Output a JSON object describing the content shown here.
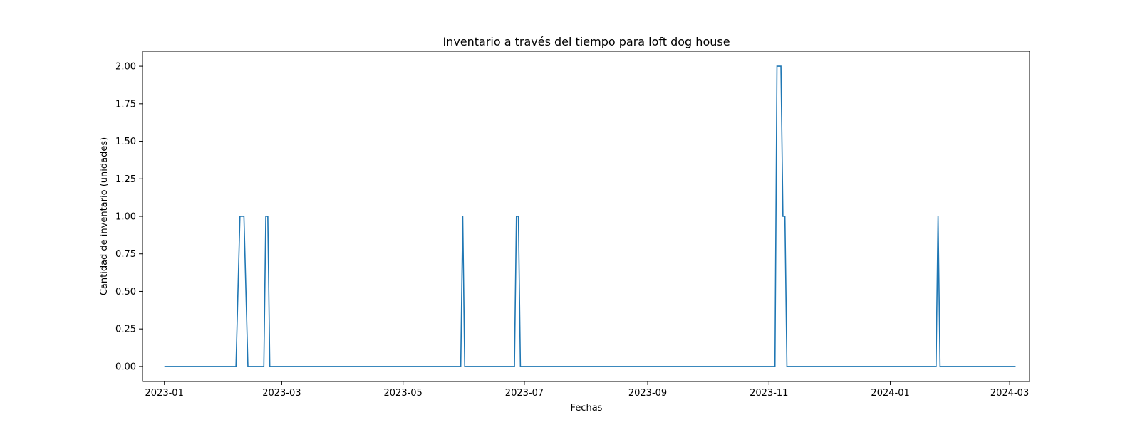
{
  "chart_data": {
    "type": "line",
    "title": "Inventario a través del tiempo para loft dog house",
    "xlabel": "Fechas",
    "ylabel": "Cantidad de inventario (unidades)",
    "x_ticks": [
      "2023-01",
      "2023-03",
      "2023-05",
      "2023-07",
      "2023-09",
      "2023-11",
      "2024-01",
      "2024-03"
    ],
    "y_ticks": [
      "0.00",
      "0.25",
      "0.50",
      "0.75",
      "1.00",
      "1.25",
      "1.50",
      "1.75",
      "2.00"
    ],
    "xlim": [
      "2022-12-21",
      "2024-03-11"
    ],
    "ylim": [
      -0.1,
      2.1
    ],
    "grid": false,
    "legend": "none",
    "color": "#1f77b4",
    "series": [
      {
        "x": [
          "2023-01-01",
          "2023-02-06",
          "2023-02-08",
          "2023-02-10",
          "2023-02-12",
          "2023-02-20",
          "2023-02-21",
          "2023-02-22",
          "2023-02-23",
          "2023-05-30",
          "2023-05-31",
          "2023-06-01",
          "2023-06-26",
          "2023-06-27",
          "2023-06-28",
          "2023-06-29",
          "2023-11-04",
          "2023-11-05",
          "2023-11-07",
          "2023-11-08",
          "2023-11-09",
          "2023-11-10",
          "2024-01-24",
          "2024-01-25",
          "2024-01-26",
          "2024-03-04"
        ],
        "values": [
          0,
          0,
          1,
          1,
          0,
          0,
          1,
          1,
          0,
          0,
          1,
          0,
          0,
          1,
          1,
          0,
          0,
          2,
          2,
          1,
          1,
          0,
          0,
          1,
          0,
          0
        ]
      }
    ]
  }
}
